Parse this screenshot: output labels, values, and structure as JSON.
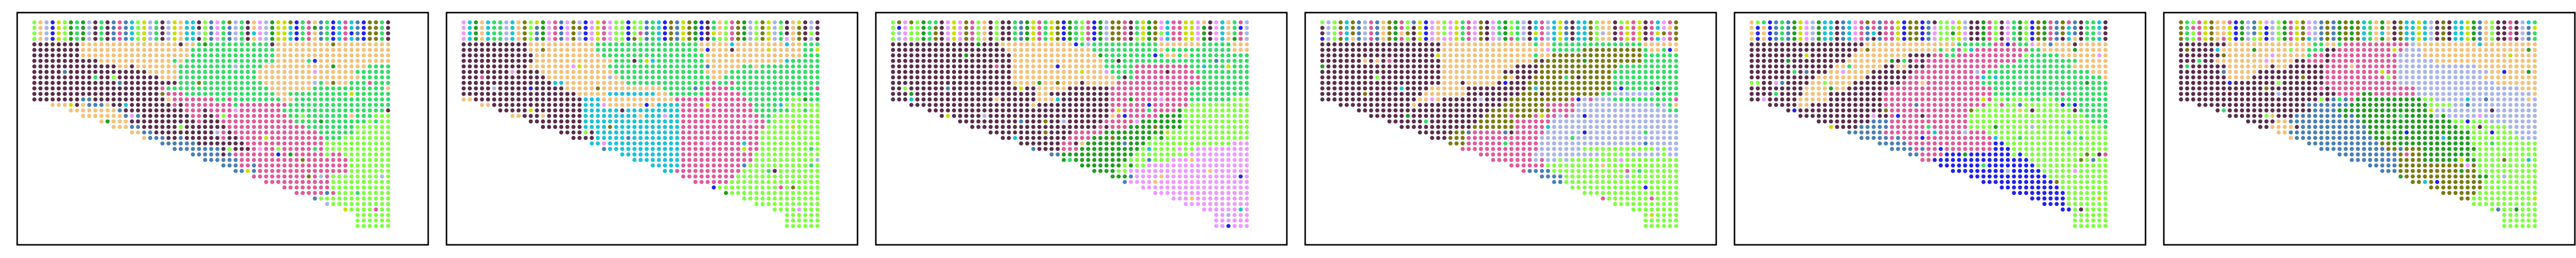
{
  "chart_data": [
    {
      "type": "scatter",
      "title": "",
      "grid": false,
      "axes_visible": false,
      "cluster_layout": [
        [
          1,
          0,
          2,
          0
        ],
        [
          1,
          1,
          3,
          2
        ],
        [
          0,
          4,
          3,
          5
        ],
        [
          6,
          4,
          4,
          5
        ]
      ]
    },
    {
      "type": "scatter",
      "title": "",
      "grid": false,
      "axes_visible": false,
      "cluster_layout": [
        [
          1,
          0,
          2,
          0
        ],
        [
          1,
          7,
          3,
          2
        ],
        [
          0,
          7,
          3,
          5
        ],
        [
          6,
          4,
          8,
          5
        ]
      ]
    },
    {
      "type": "scatter",
      "title": "",
      "grid": false,
      "axes_visible": false,
      "cluster_layout": [
        [
          1,
          0,
          2,
          0
        ],
        [
          1,
          1,
          3,
          2
        ],
        [
          0,
          4,
          9,
          5
        ],
        [
          6,
          10,
          4,
          11
        ]
      ]
    },
    {
      "type": "scatter",
      "title": "",
      "grid": false,
      "axes_visible": false,
      "cluster_layout": [
        [
          1,
          0,
          2,
          0
        ],
        [
          1,
          1,
          12,
          2
        ],
        [
          0,
          4,
          3,
          10
        ],
        [
          6,
          4,
          4,
          5
        ]
      ]
    },
    {
      "type": "scatter",
      "title": "",
      "grid": false,
      "axes_visible": false,
      "cluster_layout": [
        [
          1,
          0,
          2,
          0
        ],
        [
          1,
          1,
          3,
          2
        ],
        [
          0,
          4,
          3,
          5
        ],
        [
          6,
          4,
          8,
          5
        ]
      ]
    },
    {
      "type": "scatter",
      "title": "",
      "grid": false,
      "axes_visible": false,
      "cluster_layout": [
        [
          1,
          0,
          2,
          0
        ],
        [
          1,
          1,
          3,
          10
        ],
        [
          0,
          4,
          9,
          5
        ],
        [
          6,
          4,
          12,
          5
        ]
      ]
    }
  ],
  "palette": [
    "#f4c17a",
    "#5a2d4b",
    "#33dd66",
    "#e05a9a",
    "#4a7fb5",
    "#7fff40",
    "#c8e000",
    "#19c3d6",
    "#2222ee",
    "#1f9e1f",
    "#a9b5e8",
    "#ee99ff",
    "#7a7a12"
  ]
}
